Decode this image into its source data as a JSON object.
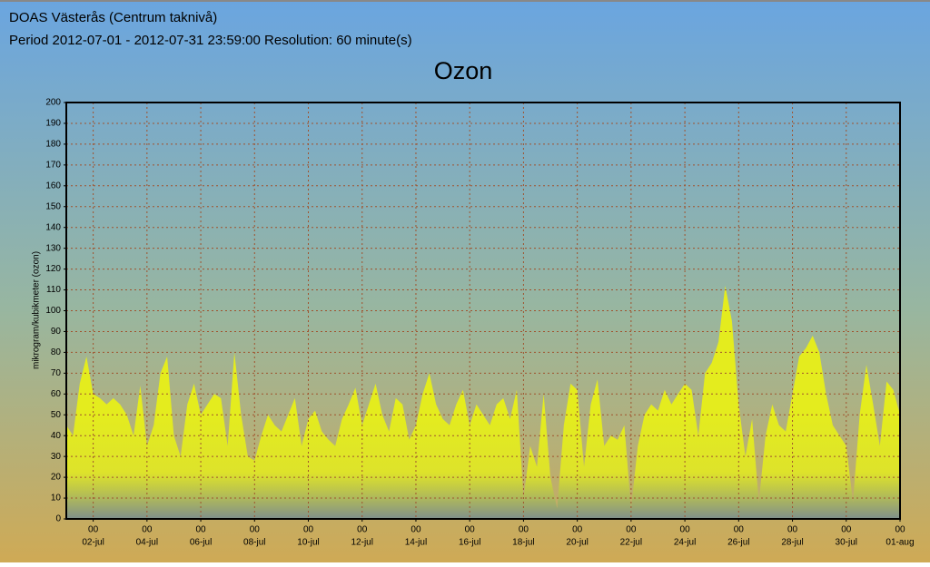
{
  "header": {
    "title": "DOAS Västerås (Centrum taknivå)",
    "subtitle": "Period 2012-07-01 - 2012-07-31 23:59:00 Resolution: 60 minute(s)"
  },
  "chart_data": {
    "type": "area",
    "title": "Ozon",
    "y_label": "mikrogram/kubikmeter (ozon)",
    "x": [
      1,
      1.25,
      1.5,
      1.75,
      2,
      2.25,
      2.5,
      2.75,
      3,
      3.25,
      3.5,
      3.75,
      4,
      4.25,
      4.5,
      4.75,
      5,
      5.25,
      5.5,
      5.75,
      6,
      6.25,
      6.5,
      6.75,
      7,
      7.25,
      7.5,
      7.75,
      8,
      8.25,
      8.5,
      8.75,
      9,
      9.25,
      9.5,
      9.75,
      10,
      10.25,
      10.5,
      10.75,
      11,
      11.25,
      11.5,
      11.75,
      12,
      12.25,
      12.5,
      12.75,
      13,
      13.25,
      13.5,
      13.75,
      14,
      14.25,
      14.5,
      14.75,
      15,
      15.25,
      15.5,
      15.75,
      16,
      16.25,
      16.5,
      16.75,
      17,
      17.25,
      17.5,
      17.75,
      18,
      18.25,
      18.5,
      18.75,
      19,
      19.25,
      19.5,
      19.75,
      20,
      20.25,
      20.5,
      20.75,
      21,
      21.25,
      21.5,
      21.75,
      22,
      22.25,
      22.5,
      22.75,
      23,
      23.25,
      23.5,
      23.75,
      24,
      24.25,
      24.5,
      24.75,
      25,
      25.25,
      25.5,
      25.75,
      26,
      26.25,
      26.5,
      26.75,
      27,
      27.25,
      27.5,
      27.75,
      28,
      28.25,
      28.5,
      28.75,
      29,
      29.25,
      29.5,
      29.75,
      30,
      30.25,
      30.5,
      30.75,
      31,
      31.25,
      31.5,
      31.75,
      32
    ],
    "values": [
      45,
      40,
      65,
      78,
      60,
      58,
      55,
      58,
      55,
      50,
      40,
      64,
      35,
      45,
      70,
      78,
      40,
      30,
      55,
      65,
      50,
      55,
      60,
      58,
      35,
      80,
      50,
      30,
      28,
      40,
      50,
      45,
      42,
      50,
      58,
      35,
      48,
      52,
      42,
      38,
      35,
      48,
      55,
      63,
      45,
      55,
      65,
      50,
      42,
      58,
      55,
      38,
      45,
      60,
      70,
      55,
      48,
      45,
      55,
      62,
      45,
      55,
      50,
      45,
      55,
      58,
      48,
      62,
      10,
      35,
      25,
      60,
      20,
      5,
      45,
      65,
      62,
      25,
      55,
      67,
      35,
      40,
      38,
      45,
      5,
      35,
      50,
      55,
      52,
      62,
      55,
      60,
      65,
      62,
      40,
      70,
      75,
      85,
      112,
      95,
      55,
      30,
      48,
      8,
      40,
      55,
      45,
      42,
      60,
      78,
      82,
      88,
      80,
      60,
      45,
      40,
      35,
      8,
      50,
      74,
      55,
      35,
      66,
      62,
      50
    ],
    "color_top": "#e4ec1e",
    "color_bottom": "#7f8f8c",
    "xlim": [
      1,
      32
    ],
    "xticks": [
      {
        "value": 2,
        "label": "02-jul"
      },
      {
        "value": 4,
        "label": "04-jul"
      },
      {
        "value": 6,
        "label": "06-jul"
      },
      {
        "value": 8,
        "label": "08-jul"
      },
      {
        "value": 10,
        "label": "10-jul"
      },
      {
        "value": 12,
        "label": "12-jul"
      },
      {
        "value": 14,
        "label": "14-jul"
      },
      {
        "value": 16,
        "label": "16-jul"
      },
      {
        "value": 18,
        "label": "18-jul"
      },
      {
        "value": 20,
        "label": "20-jul"
      },
      {
        "value": 22,
        "label": "22-jul"
      },
      {
        "value": 24,
        "label": "24-jul"
      },
      {
        "value": 26,
        "label": "26-jul"
      },
      {
        "value": 28,
        "label": "28-jul"
      },
      {
        "value": 30,
        "label": "30-jul"
      },
      {
        "value": 32,
        "label": "01-aug"
      }
    ],
    "xtick_hour": "00",
    "ylim": [
      0,
      200
    ],
    "yticks": [
      0,
      10,
      20,
      30,
      40,
      50,
      60,
      70,
      80,
      90,
      100,
      110,
      120,
      130,
      140,
      150,
      160,
      170,
      180,
      190,
      200
    ],
    "grid": true,
    "grid_color": "#a0522d"
  }
}
